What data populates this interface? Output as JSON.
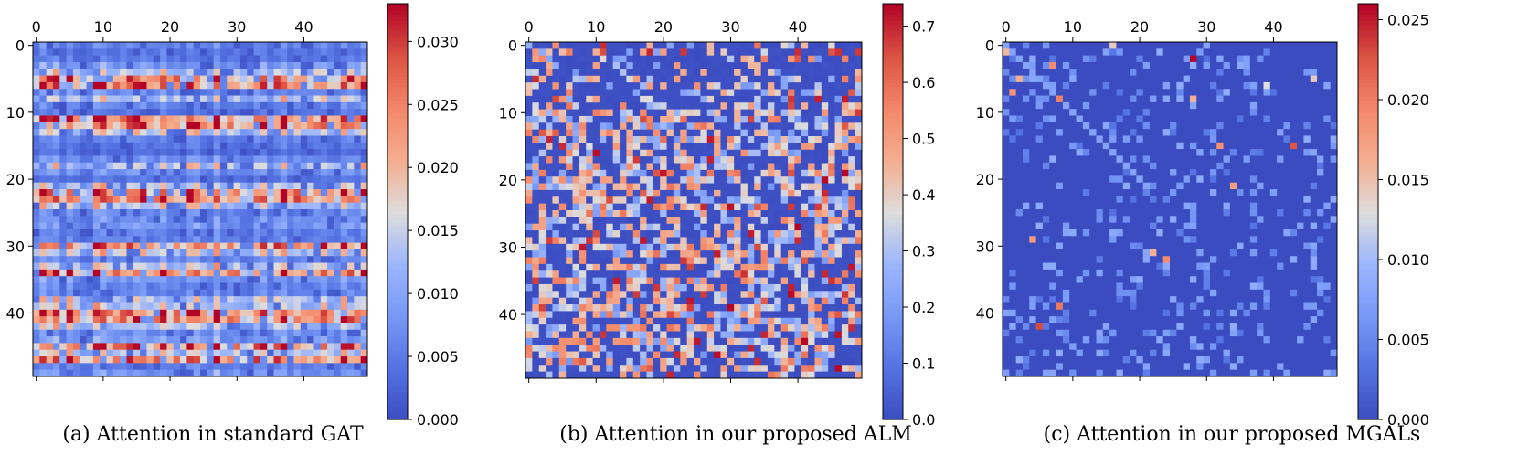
{
  "chart_data": [
    {
      "type": "heatmap",
      "pattern": "row_banded",
      "caption": "(a) Attention in standard GAT",
      "rows": 50,
      "cols": 50,
      "x_ticks": [
        "0",
        "10",
        "20",
        "30",
        "40"
      ],
      "y_ticks": [
        "0",
        "10",
        "20",
        "30",
        "40"
      ],
      "colorbar": {
        "min": 0.0,
        "max": 0.033,
        "cmap": "coolwarm",
        "ticks": [
          "0.000",
          "0.005",
          "0.010",
          "0.015",
          "0.020",
          "0.025",
          "0.030"
        ],
        "tick_values": [
          0.0,
          0.005,
          0.01,
          0.015,
          0.02,
          0.025,
          0.03
        ]
      },
      "value_range": [
        0.0,
        0.033
      ]
    },
    {
      "type": "heatmap",
      "pattern": "sparse_scatter",
      "caption": "(b) Attention in our proposed ALM",
      "rows": 50,
      "cols": 50,
      "x_ticks": [
        "0",
        "10",
        "20",
        "30",
        "40"
      ],
      "y_ticks": [
        "0",
        "10",
        "20",
        "30",
        "40"
      ],
      "colorbar": {
        "min": 0.0,
        "max": 0.74,
        "cmap": "coolwarm",
        "ticks": [
          "0.0",
          "0.1",
          "0.2",
          "0.3",
          "0.4",
          "0.5",
          "0.6",
          "0.7"
        ],
        "tick_values": [
          0.0,
          0.1,
          0.2,
          0.3,
          0.4,
          0.5,
          0.6,
          0.7
        ]
      },
      "value_range": [
        0.0,
        0.74
      ]
    },
    {
      "type": "heatmap",
      "pattern": "very_sparse",
      "caption": "(c) Attention in our proposed MGALs",
      "rows": 50,
      "cols": 50,
      "x_ticks": [
        "0",
        "10",
        "20",
        "30",
        "40"
      ],
      "y_ticks": [
        "0",
        "10",
        "20",
        "30",
        "40"
      ],
      "colorbar": {
        "min": 0.0,
        "max": 0.026,
        "cmap": "coolwarm",
        "ticks": [
          "0.000",
          "0.005",
          "0.010",
          "0.015",
          "0.020",
          "0.025"
        ],
        "tick_values": [
          0.0,
          0.005,
          0.01,
          0.015,
          0.02,
          0.025
        ]
      },
      "value_range": [
        0.0,
        0.026
      ]
    }
  ]
}
